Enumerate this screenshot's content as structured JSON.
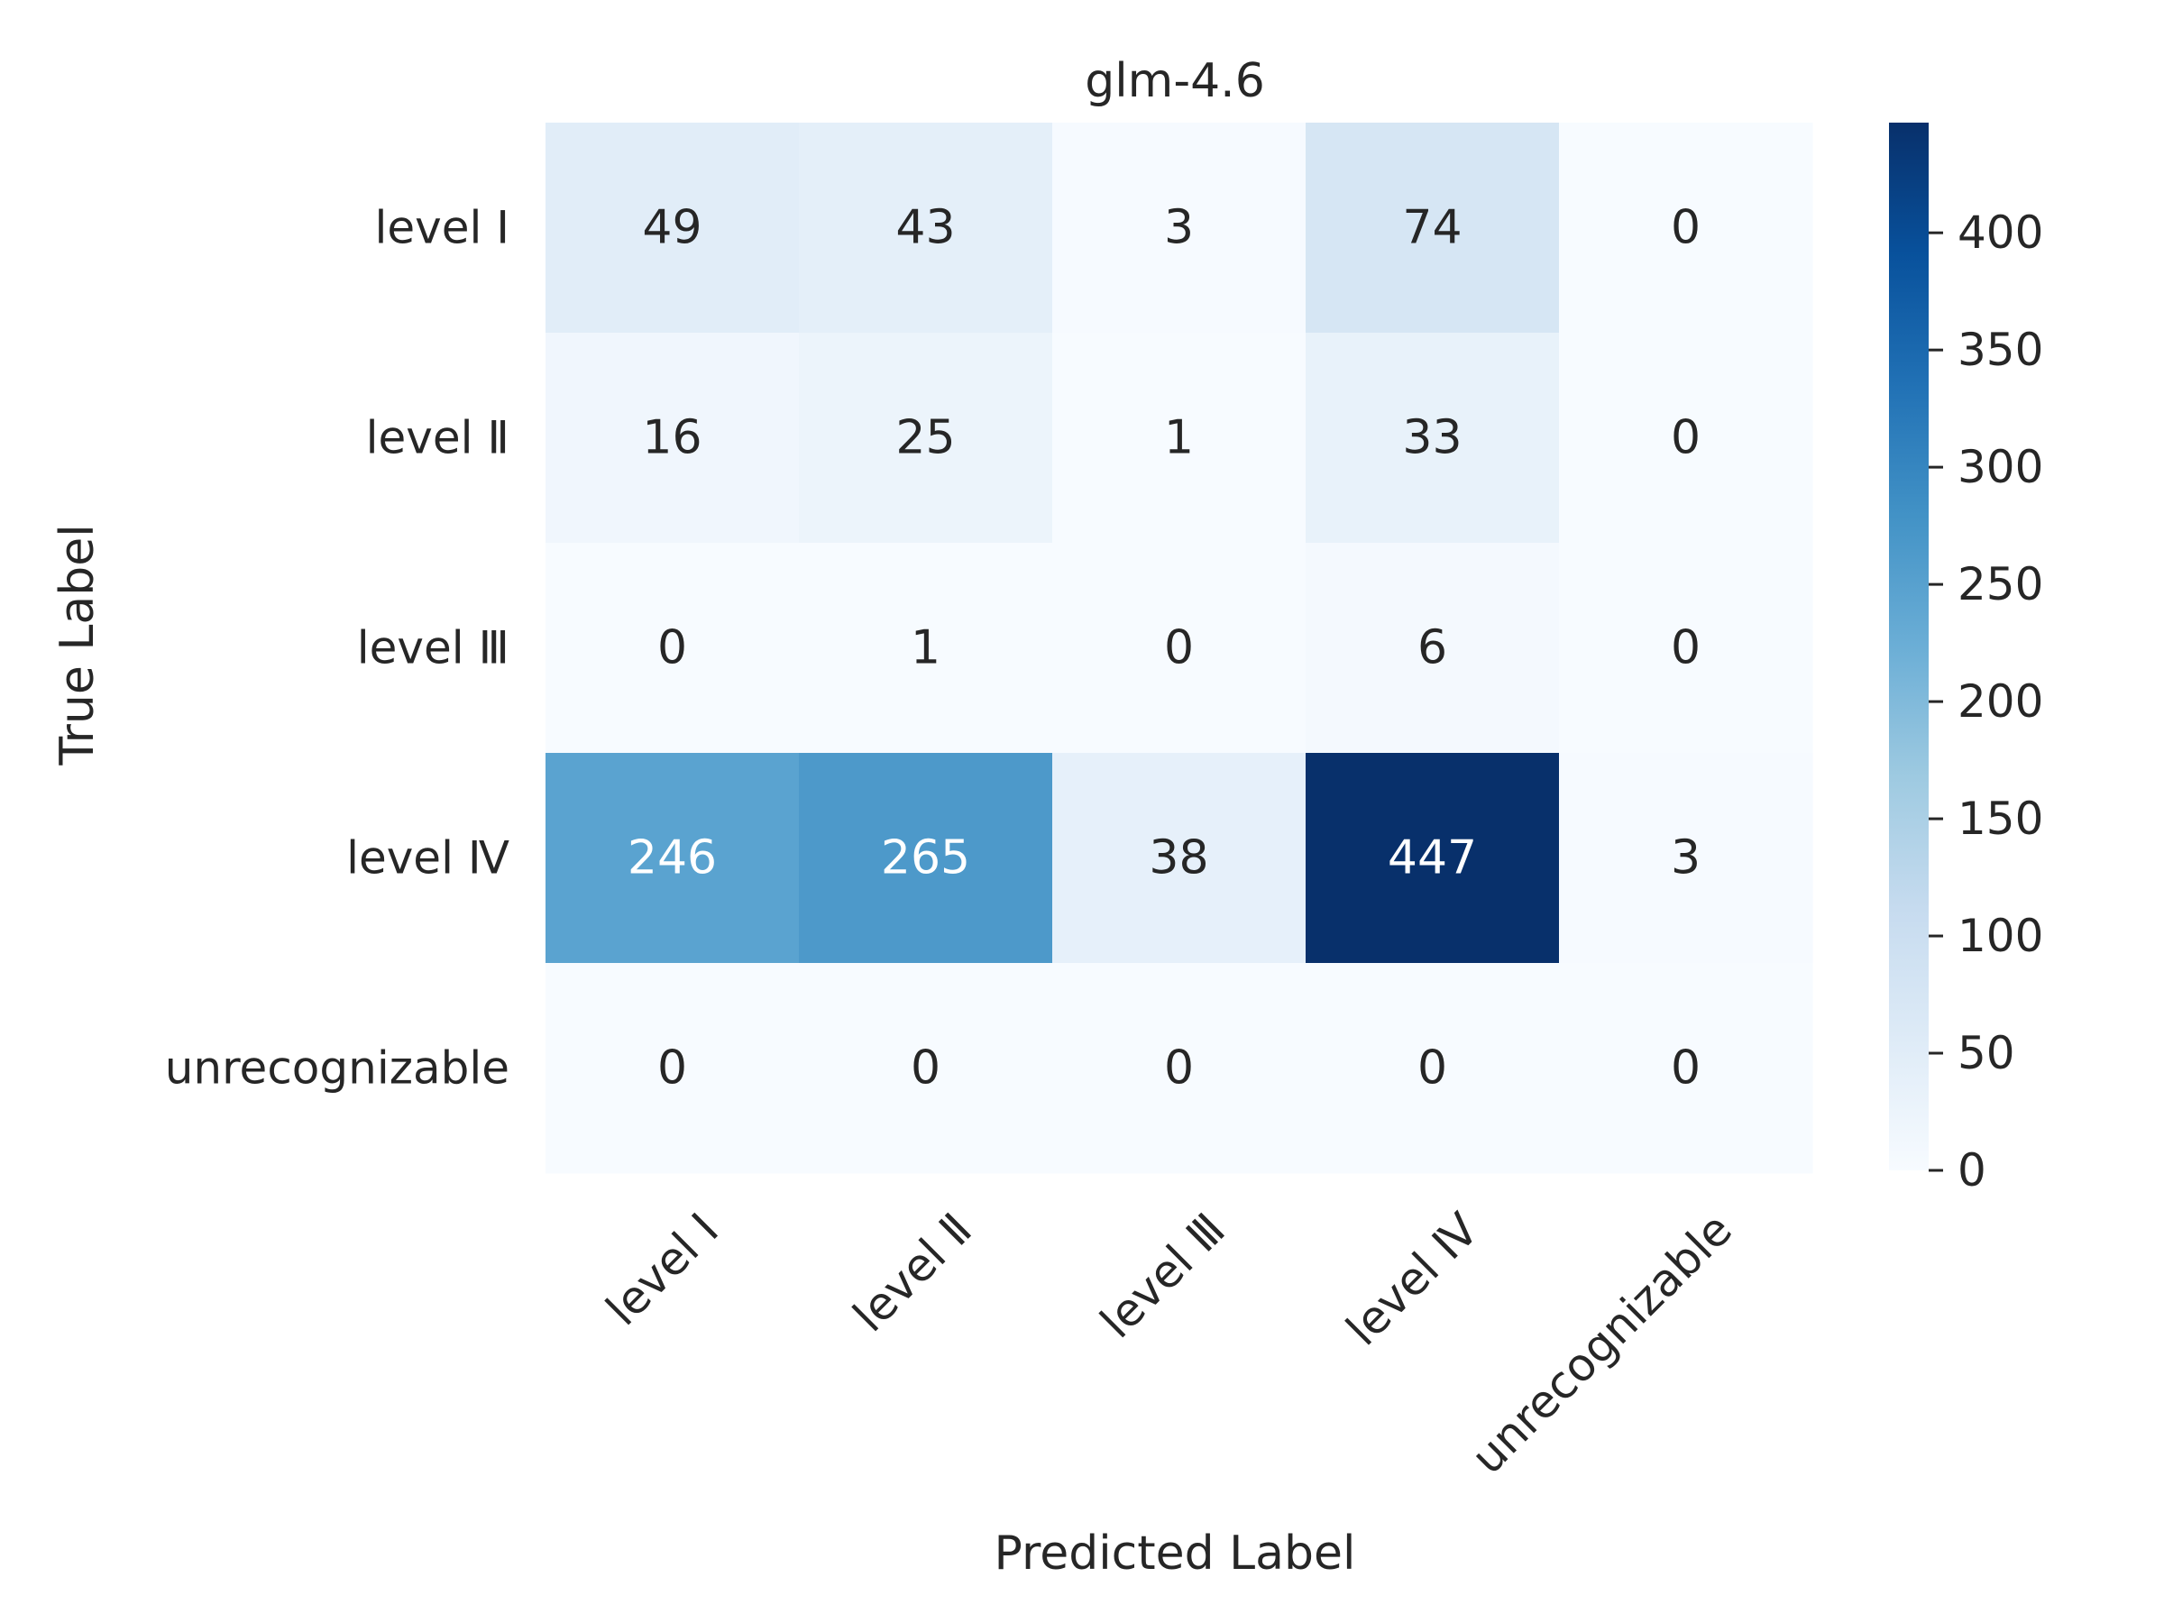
{
  "chart_data": {
    "type": "heatmap",
    "title": "glm-4.6",
    "xlabel": "Predicted Label",
    "ylabel": "True Label",
    "x_categories": [
      "level Ⅰ",
      "level Ⅱ",
      "level Ⅲ",
      "level Ⅳ",
      "unrecognizable"
    ],
    "y_categories": [
      "level Ⅰ",
      "level Ⅱ",
      "level Ⅲ",
      "level Ⅳ",
      "unrecognizable"
    ],
    "values": [
      [
        49,
        43,
        3,
        74,
        0
      ],
      [
        16,
        25,
        1,
        33,
        0
      ],
      [
        0,
        1,
        0,
        6,
        0
      ],
      [
        246,
        265,
        38,
        447,
        3
      ],
      [
        0,
        0,
        0,
        0,
        0
      ]
    ],
    "colormap": "Blues",
    "colorbar": {
      "min": 0,
      "max": 447,
      "ticks": [
        0,
        50,
        100,
        150,
        200,
        250,
        300,
        350,
        400
      ]
    },
    "grid": false,
    "colors": {
      "text_dark": "#262626",
      "text_light": "#ffffff"
    }
  }
}
